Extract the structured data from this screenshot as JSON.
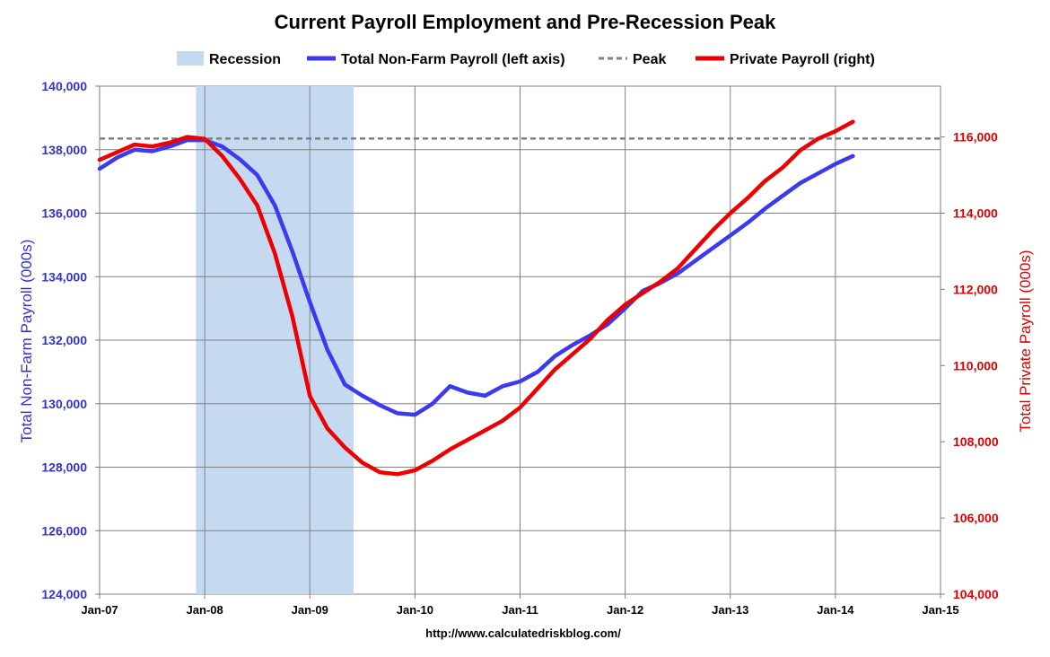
{
  "chart_data": {
    "type": "line",
    "title": "Current Payroll Employment and Pre-Recession Peak",
    "source": "http://www.calculatedriskblog.com/",
    "ylabel_left": "Total Non-Farm Payroll (000s)",
    "ylabel_right": "Total Private Payroll (000s)",
    "ylim_left": [
      124000,
      140000
    ],
    "ylim_right": [
      104000,
      117333
    ],
    "xlim": [
      "2007-01",
      "2015-01"
    ],
    "grid": true,
    "legend_placement": "top",
    "x_tick_labels": [
      "Jan-07",
      "Jan-08",
      "Jan-09",
      "Jan-10",
      "Jan-11",
      "Jan-12",
      "Jan-13",
      "Jan-14",
      "Jan-15"
    ],
    "y_tick_labels_left": [
      "124,000",
      "126,000",
      "128,000",
      "130,000",
      "132,000",
      "134,000",
      "136,000",
      "138,000",
      "140,000"
    ],
    "y_tick_labels_right": [
      "104,000",
      "106,000",
      "108,000",
      "110,000",
      "112,000",
      "114,000",
      "116,000"
    ],
    "legend": [
      {
        "label": "Recession",
        "kind": "area",
        "color": "#c5d9f1"
      },
      {
        "label": "Total Non-Farm Payroll (left axis)",
        "kind": "line",
        "color": "#3a3aee"
      },
      {
        "label": "Peak",
        "kind": "dashed",
        "color": "#808080"
      },
      {
        "label": "Private Payroll (right)",
        "kind": "line",
        "color": "#ee0000"
      }
    ],
    "recession": {
      "start": "2007-12",
      "end": "2009-06"
    },
    "peak_value_left": 138350,
    "series": [
      {
        "name": "Total Non-Farm Payroll (left axis)",
        "axis": "left",
        "color": "#3a3aee",
        "x": [
          "2007-01",
          "2007-03",
          "2007-05",
          "2007-07",
          "2007-09",
          "2007-11",
          "2008-01",
          "2008-03",
          "2008-05",
          "2008-07",
          "2008-09",
          "2008-11",
          "2009-01",
          "2009-03",
          "2009-05",
          "2009-07",
          "2009-09",
          "2009-11",
          "2010-01",
          "2010-03",
          "2010-05",
          "2010-07",
          "2010-09",
          "2010-11",
          "2011-01",
          "2011-03",
          "2011-05",
          "2011-07",
          "2011-09",
          "2011-11",
          "2012-01",
          "2012-03",
          "2012-05",
          "2012-07",
          "2012-09",
          "2012-11",
          "2013-01",
          "2013-03",
          "2013-05",
          "2013-07",
          "2013-09",
          "2013-11",
          "2014-01",
          "2014-03"
        ],
        "values": [
          137400,
          137750,
          138000,
          137950,
          138100,
          138300,
          138300,
          138100,
          137700,
          137200,
          136250,
          134800,
          133200,
          131700,
          130600,
          130250,
          129950,
          129700,
          129650,
          130000,
          130550,
          130350,
          130250,
          130550,
          130700,
          131000,
          131500,
          131850,
          132150,
          132500,
          133000,
          133550,
          133800,
          134100,
          134500,
          134900,
          135300,
          135700,
          136150,
          136550,
          136950,
          137250,
          137550,
          137800
        ]
      },
      {
        "name": "Private Payroll (right)",
        "axis": "right",
        "color": "#ee0000",
        "x": [
          "2007-01",
          "2007-03",
          "2007-05",
          "2007-07",
          "2007-09",
          "2007-11",
          "2008-01",
          "2008-03",
          "2008-05",
          "2008-07",
          "2008-09",
          "2008-11",
          "2009-01",
          "2009-03",
          "2009-05",
          "2009-07",
          "2009-09",
          "2009-11",
          "2010-01",
          "2010-03",
          "2010-05",
          "2010-07",
          "2010-09",
          "2010-11",
          "2011-01",
          "2011-03",
          "2011-05",
          "2011-07",
          "2011-09",
          "2011-11",
          "2012-01",
          "2012-03",
          "2012-05",
          "2012-07",
          "2012-09",
          "2012-11",
          "2013-01",
          "2013-03",
          "2013-05",
          "2013-07",
          "2013-09",
          "2013-11",
          "2014-01",
          "2014-03"
        ],
        "values": [
          115400,
          115600,
          115800,
          115750,
          115850,
          116000,
          115950,
          115500,
          114900,
          114200,
          112950,
          111300,
          109200,
          108350,
          107850,
          107450,
          107200,
          107150,
          107250,
          107500,
          107800,
          108050,
          108300,
          108550,
          108900,
          109400,
          109900,
          110300,
          110700,
          111200,
          111600,
          111900,
          112200,
          112550,
          113050,
          113550,
          114000,
          114400,
          114850,
          115200,
          115650,
          115950,
          116150,
          116400
        ]
      }
    ]
  }
}
